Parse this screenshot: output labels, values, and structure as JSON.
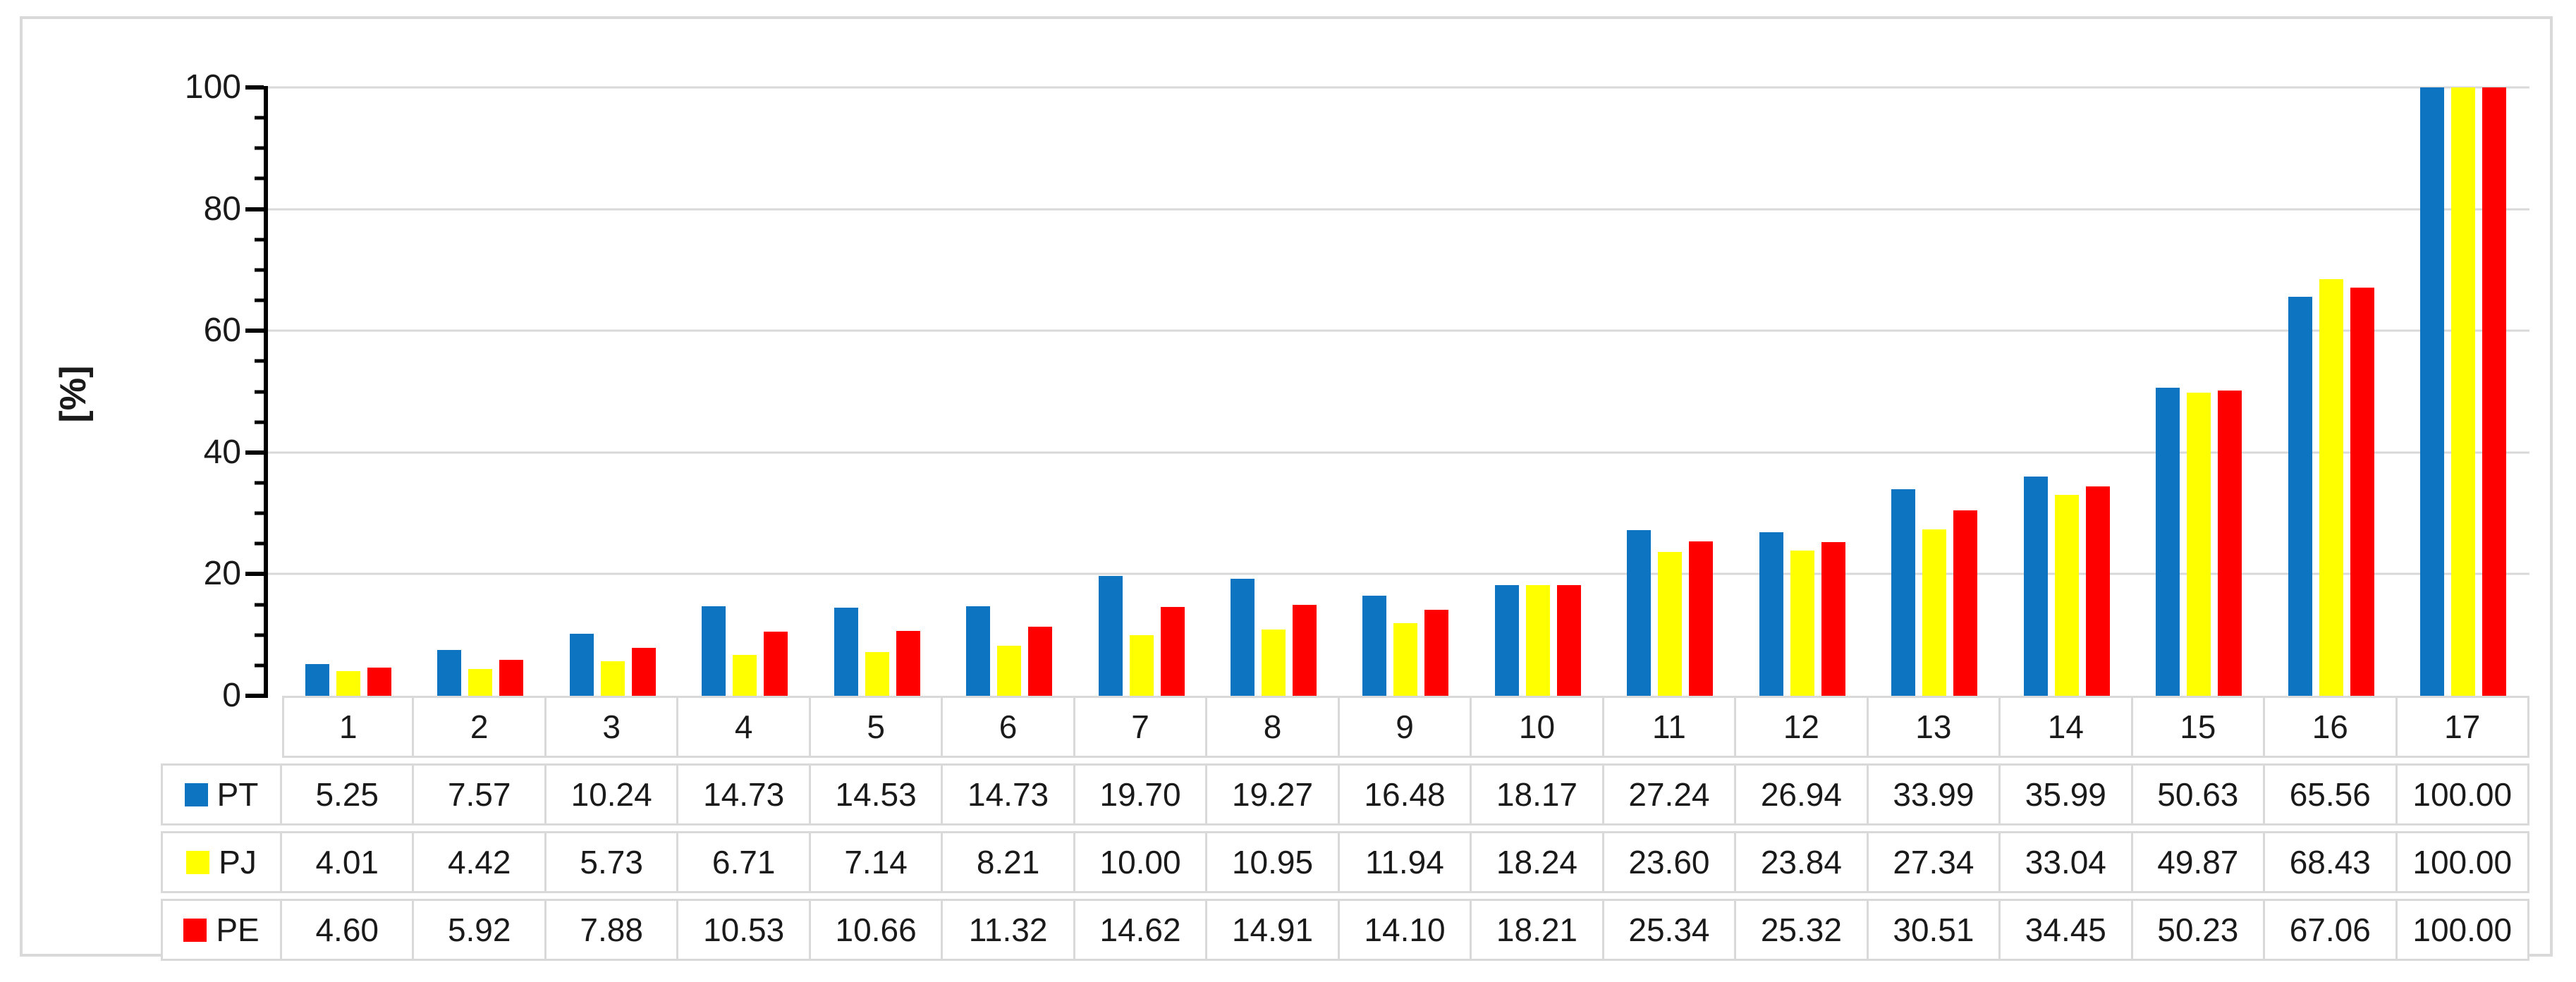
{
  "chart_data": {
    "type": "bar",
    "title": "",
    "xlabel": "",
    "ylabel": "[%]",
    "ylim": [
      0,
      100
    ],
    "yticks": [
      0,
      20,
      40,
      60,
      80,
      100
    ],
    "ytick_labels": [
      "0",
      "20",
      "40",
      "60",
      "80",
      "100"
    ],
    "y_minor_step": 5,
    "y_major_step": 20,
    "grid": true,
    "legend_position": "table-left-column",
    "value_format": "2-decimals",
    "categories": [
      "1",
      "2",
      "3",
      "4",
      "5",
      "6",
      "7",
      "8",
      "9",
      "10",
      "11",
      "12",
      "13",
      "14",
      "15",
      "16",
      "17"
    ],
    "series": [
      {
        "name": "PT",
        "color": "#0D74C2",
        "values": [
          5.25,
          7.57,
          10.24,
          14.73,
          14.53,
          14.73,
          19.7,
          19.27,
          16.48,
          18.17,
          27.24,
          26.94,
          33.99,
          35.99,
          50.63,
          65.56,
          100.0
        ]
      },
      {
        "name": "PJ",
        "color": "#FFFF00",
        "values": [
          4.01,
          4.42,
          5.73,
          6.71,
          7.14,
          8.21,
          10.0,
          10.95,
          11.94,
          18.24,
          23.6,
          23.84,
          27.34,
          33.04,
          49.87,
          68.43,
          100.0
        ]
      },
      {
        "name": "PE",
        "color": "#FF0000",
        "values": [
          4.6,
          5.92,
          7.88,
          10.53,
          10.66,
          11.32,
          14.62,
          14.91,
          14.1,
          18.21,
          25.34,
          25.32,
          30.51,
          34.45,
          50.23,
          67.06,
          100.0
        ]
      }
    ],
    "style": {
      "axis_color": "#000000",
      "grid_color": "#D9D9D9",
      "table_border_color": "#D9D9D9",
      "text_color": "#1A1A1A",
      "background": "#FFFFFF"
    }
  }
}
